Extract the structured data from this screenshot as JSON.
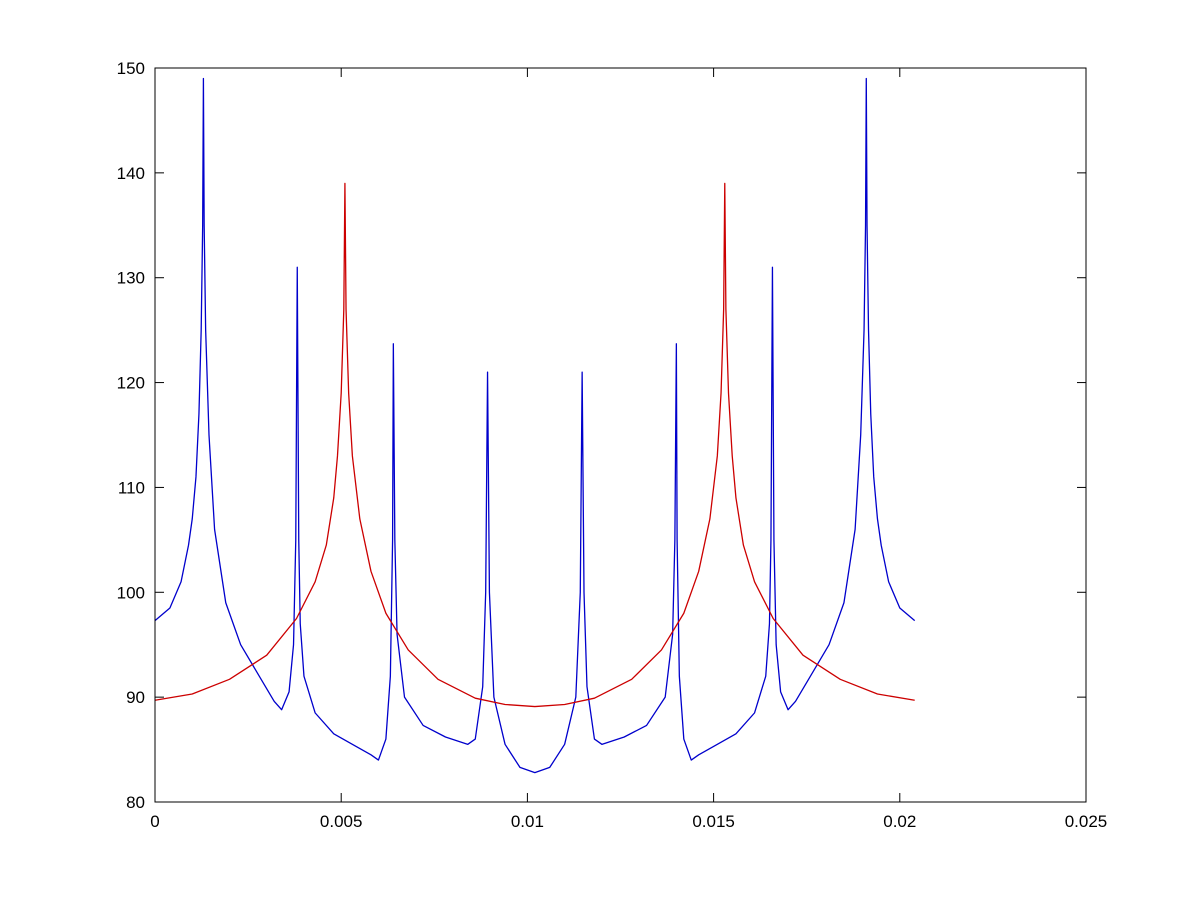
{
  "chart_data": {
    "type": "line",
    "title": "",
    "xlabel": "",
    "ylabel": "",
    "xlim": [
      0,
      0.025
    ],
    "ylim": [
      80,
      150
    ],
    "x_ticks": [
      "0",
      "0.005",
      "0.01",
      "0.015",
      "0.02",
      "0.025"
    ],
    "y_ticks": [
      "80",
      "90",
      "100",
      "110",
      "120",
      "130",
      "140",
      "150"
    ],
    "grid": false,
    "legend": "none",
    "series": [
      {
        "color": "#0000cc",
        "points": [
          [
            0,
            97.3
          ],
          [
            0.0004,
            98.5
          ],
          [
            0.0007,
            101
          ],
          [
            0.0009,
            104.5
          ],
          [
            0.001,
            107
          ],
          [
            0.0011,
            111
          ],
          [
            0.00118,
            117
          ],
          [
            0.00124,
            125
          ],
          [
            0.00128,
            135
          ],
          [
            0.0013,
            149
          ],
          [
            0.00132,
            135
          ],
          [
            0.00136,
            125
          ],
          [
            0.00145,
            115
          ],
          [
            0.0016,
            106
          ],
          [
            0.0019,
            99
          ],
          [
            0.0023,
            95
          ],
          [
            0.0028,
            92
          ],
          [
            0.0032,
            89.6
          ],
          [
            0.0034,
            88.8
          ],
          [
            0.0036,
            90.5
          ],
          [
            0.00372,
            95
          ],
          [
            0.00378,
            105
          ],
          [
            0.00382,
            131
          ],
          [
            0.00386,
            105
          ],
          [
            0.0039,
            97
          ],
          [
            0.004,
            92
          ],
          [
            0.0043,
            88.5
          ],
          [
            0.0048,
            86.5
          ],
          [
            0.0054,
            85.3
          ],
          [
            0.0058,
            84.5
          ],
          [
            0.006,
            84
          ],
          [
            0.0062,
            86
          ],
          [
            0.00632,
            92
          ],
          [
            0.00638,
            105
          ],
          [
            0.0064,
            123.7
          ],
          [
            0.00644,
            105
          ],
          [
            0.0065,
            96
          ],
          [
            0.0067,
            90
          ],
          [
            0.0072,
            87.3
          ],
          [
            0.0078,
            86.2
          ],
          [
            0.0084,
            85.5
          ],
          [
            0.0086,
            86
          ],
          [
            0.0088,
            91
          ],
          [
            0.00888,
            100
          ],
          [
            0.00893,
            121
          ],
          [
            0.00898,
            100
          ],
          [
            0.0091,
            90
          ],
          [
            0.0094,
            85.5
          ],
          [
            0.0098,
            83.3
          ],
          [
            0.0102,
            82.8
          ],
          [
            0.0106,
            83.3
          ],
          [
            0.011,
            85.5
          ],
          [
            0.0113,
            90
          ],
          [
            0.01142,
            100
          ],
          [
            0.01147,
            121
          ],
          [
            0.01152,
            100
          ],
          [
            0.0116,
            91
          ],
          [
            0.0118,
            86
          ],
          [
            0.012,
            85.5
          ],
          [
            0.0126,
            86.2
          ],
          [
            0.0132,
            87.3
          ],
          [
            0.0137,
            90
          ],
          [
            0.0139,
            96
          ],
          [
            0.01396,
            105
          ],
          [
            0.014,
            123.7
          ],
          [
            0.01402,
            105
          ],
          [
            0.01408,
            92
          ],
          [
            0.0142,
            86
          ],
          [
            0.0144,
            84
          ],
          [
            0.0146,
            84.5
          ],
          [
            0.015,
            85.3
          ],
          [
            0.0156,
            86.5
          ],
          [
            0.0161,
            88.5
          ],
          [
            0.0164,
            92
          ],
          [
            0.0165,
            97
          ],
          [
            0.01654,
            105
          ],
          [
            0.01658,
            131
          ],
          [
            0.01662,
            105
          ],
          [
            0.01668,
            95
          ],
          [
            0.0168,
            90.5
          ],
          [
            0.017,
            88.8
          ],
          [
            0.0172,
            89.6
          ],
          [
            0.0176,
            92
          ],
          [
            0.0181,
            95
          ],
          [
            0.0185,
            99
          ],
          [
            0.0188,
            106
          ],
          [
            0.01895,
            115
          ],
          [
            0.01904,
            125
          ],
          [
            0.01908,
            135
          ],
          [
            0.0191,
            149
          ],
          [
            0.01912,
            135
          ],
          [
            0.01916,
            125
          ],
          [
            0.01922,
            117
          ],
          [
            0.0193,
            111
          ],
          [
            0.0194,
            107
          ],
          [
            0.0195,
            104.5
          ],
          [
            0.0197,
            101
          ],
          [
            0.02,
            98.5
          ],
          [
            0.0204,
            97.3
          ]
        ]
      },
      {
        "color": "#cc0000",
        "points": [
          [
            0,
            89.7
          ],
          [
            0.001,
            90.3
          ],
          [
            0.002,
            91.7
          ],
          [
            0.003,
            94
          ],
          [
            0.0038,
            97.5
          ],
          [
            0.0043,
            101
          ],
          [
            0.0046,
            104.5
          ],
          [
            0.0048,
            109
          ],
          [
            0.0049,
            113
          ],
          [
            0.005,
            119
          ],
          [
            0.00507,
            127
          ],
          [
            0.0051,
            139
          ],
          [
            0.00513,
            127
          ],
          [
            0.0052,
            119
          ],
          [
            0.0053,
            113
          ],
          [
            0.0055,
            107
          ],
          [
            0.0058,
            102
          ],
          [
            0.0062,
            98
          ],
          [
            0.0068,
            94.5
          ],
          [
            0.0076,
            91.7
          ],
          [
            0.0086,
            89.9
          ],
          [
            0.0094,
            89.3
          ],
          [
            0.0102,
            89.1
          ],
          [
            0.011,
            89.3
          ],
          [
            0.0118,
            89.9
          ],
          [
            0.0128,
            91.7
          ],
          [
            0.0136,
            94.5
          ],
          [
            0.0142,
            98
          ],
          [
            0.0146,
            102
          ],
          [
            0.0149,
            107
          ],
          [
            0.0151,
            113
          ],
          [
            0.0152,
            119
          ],
          [
            0.01527,
            127
          ],
          [
            0.0153,
            139
          ],
          [
            0.01533,
            127
          ],
          [
            0.0154,
            119
          ],
          [
            0.0155,
            113
          ],
          [
            0.0156,
            109
          ],
          [
            0.0158,
            104.5
          ],
          [
            0.0161,
            101
          ],
          [
            0.0166,
            97.5
          ],
          [
            0.0174,
            94
          ],
          [
            0.0184,
            91.7
          ],
          [
            0.0194,
            90.3
          ],
          [
            0.0204,
            89.7
          ]
        ]
      }
    ]
  }
}
